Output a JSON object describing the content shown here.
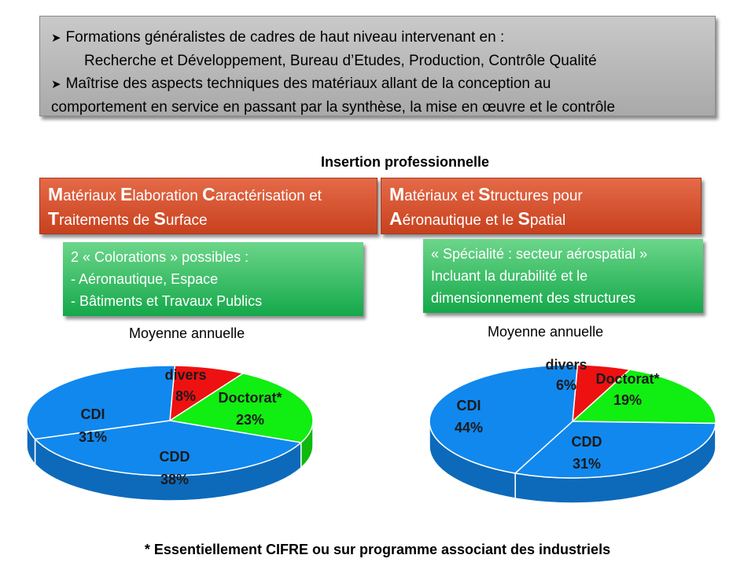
{
  "intro": {
    "line1": "Formations  généralistes de cadres de haut niveau intervenant en :",
    "line2": "Recherche et Développement, Bureau d’Etudes, Production, Contrôle Qualité",
    "line3": "Maîtrise des aspects techniques des matériaux allant de la conception au",
    "line4": "comportement en service en passant par la synthèse, la mise en œuvre et le contrôle"
  },
  "section_title": "Insertion professionnelle",
  "programs": [
    {
      "line1": [
        {
          "b": "M",
          "t": "atériaux "
        },
        {
          "b": "E",
          "t": "laboration "
        },
        {
          "b": "C",
          "t": "aractérisation et"
        }
      ],
      "line2": [
        {
          "b": "T",
          "t": "raitements de "
        },
        {
          "b": "S",
          "t": "urface"
        }
      ],
      "options": [
        "2 « Colorations » possibles :",
        "- Aéronautique, Espace",
        "- Bâtiments et Travaux Publics"
      ],
      "caption": "Moyenne annuelle"
    },
    {
      "line1": [
        {
          "b": "M",
          "t": "atériaux et "
        },
        {
          "b": "S",
          "t": "tructures pour"
        }
      ],
      "line2": [
        {
          "b": "A",
          "t": "éronautique et le "
        },
        {
          "b": "S",
          "t": "patial"
        }
      ],
      "options": [
        "« Spécialité : secteur aérospatial »",
        "Incluant la durabilité et le",
        "dimensionnement des structures"
      ],
      "caption": "Moyenne annuelle"
    }
  ],
  "footnote": "* Essentiellement CIFRE ou sur programme associant des industriels",
  "colors": {
    "divers": "#ee1111",
    "doctorat": "#11ee11",
    "cdd": "#1188ee",
    "cdi": "#1188ee"
  },
  "chart_data": [
    {
      "type": "pie",
      "title": "Moyenne annuelle",
      "categories": [
        "divers",
        "Doctorat*",
        "CDD",
        "CDI"
      ],
      "values": [
        8,
        23,
        38,
        31
      ],
      "labels": [
        "8%",
        "23%",
        "38%",
        "31%"
      ]
    },
    {
      "type": "pie",
      "title": "Moyenne annuelle",
      "categories": [
        "divers",
        "Doctorat*",
        "CDD",
        "CDI"
      ],
      "values": [
        6,
        19,
        31,
        44
      ],
      "labels": [
        "6%",
        "19%",
        "31%",
        "44%"
      ]
    }
  ]
}
